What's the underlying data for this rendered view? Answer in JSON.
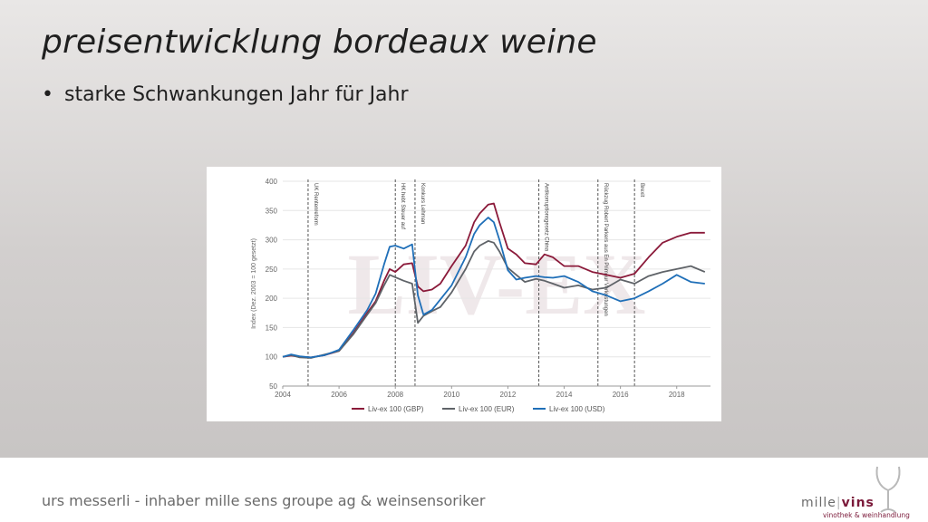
{
  "slide": {
    "title": "preisentwicklung bordeaux weine",
    "bullets": [
      "starke Schwankungen Jahr für Jahr"
    ]
  },
  "footer": {
    "text": "urs messerli - inhaber mille sens groupe ag & weinsensoriker",
    "logo_part1": "mille",
    "logo_part2": "vins",
    "logo_subtitle": "vinothek & weinhandlung"
  },
  "chart_data": {
    "type": "line",
    "watermark": "LIV-EX",
    "ylabel": "Index (Dez. 2003 = 100 gesetzt)",
    "xlim": [
      2004,
      2019.2
    ],
    "ylim": [
      50,
      400
    ],
    "yticks": [
      50,
      100,
      150,
      200,
      250,
      300,
      350,
      400
    ],
    "xticks": [
      2004,
      2006,
      2008,
      2010,
      2012,
      2014,
      2016,
      2018
    ],
    "events": [
      {
        "x": 2004.9,
        "label": "UK Rentenreform"
      },
      {
        "x": 2008.0,
        "label": "HK hebt Steuer auf"
      },
      {
        "x": 2008.7,
        "label": "Konkurs Lehman"
      },
      {
        "x": 2013.1,
        "label": "Antikorruptionsgesetz China"
      },
      {
        "x": 2015.2,
        "label": "Rückzug Robert Parkers aus En Primeur Verkostungen"
      },
      {
        "x": 2016.5,
        "label": "Brexit"
      }
    ],
    "series": [
      {
        "name": "Liv-ex 100 (GBP)",
        "color": "#8b1a3a",
        "points": [
          [
            2004.0,
            100
          ],
          [
            2004.3,
            102
          ],
          [
            2004.6,
            100
          ],
          [
            2005.0,
            99
          ],
          [
            2005.5,
            103
          ],
          [
            2006.0,
            110
          ],
          [
            2006.5,
            140
          ],
          [
            2007.0,
            175
          ],
          [
            2007.3,
            195
          ],
          [
            2007.6,
            230
          ],
          [
            2007.8,
            250
          ],
          [
            2008.0,
            245
          ],
          [
            2008.3,
            258
          ],
          [
            2008.6,
            260
          ],
          [
            2008.8,
            220
          ],
          [
            2009.0,
            212
          ],
          [
            2009.3,
            215
          ],
          [
            2009.6,
            225
          ],
          [
            2010.0,
            255
          ],
          [
            2010.5,
            290
          ],
          [
            2010.8,
            330
          ],
          [
            2011.0,
            345
          ],
          [
            2011.3,
            360
          ],
          [
            2011.5,
            362
          ],
          [
            2011.7,
            330
          ],
          [
            2012.0,
            285
          ],
          [
            2012.3,
            275
          ],
          [
            2012.6,
            260
          ],
          [
            2013.0,
            258
          ],
          [
            2013.3,
            275
          ],
          [
            2013.6,
            270
          ],
          [
            2014.0,
            255
          ],
          [
            2014.5,
            255
          ],
          [
            2015.0,
            245
          ],
          [
            2015.5,
            240
          ],
          [
            2016.0,
            235
          ],
          [
            2016.5,
            242
          ],
          [
            2017.0,
            270
          ],
          [
            2017.5,
            295
          ],
          [
            2018.0,
            305
          ],
          [
            2018.5,
            312
          ],
          [
            2019.0,
            312
          ]
        ]
      },
      {
        "name": "Liv-ex 100 (EUR)",
        "color": "#5f6368",
        "points": [
          [
            2004.0,
            100
          ],
          [
            2004.3,
            103
          ],
          [
            2004.6,
            99
          ],
          [
            2005.0,
            98
          ],
          [
            2005.5,
            104
          ],
          [
            2006.0,
            110
          ],
          [
            2006.5,
            138
          ],
          [
            2007.0,
            172
          ],
          [
            2007.3,
            192
          ],
          [
            2007.6,
            222
          ],
          [
            2007.8,
            240
          ],
          [
            2008.0,
            236
          ],
          [
            2008.3,
            230
          ],
          [
            2008.6,
            225
          ],
          [
            2008.8,
            158
          ],
          [
            2009.0,
            170
          ],
          [
            2009.3,
            178
          ],
          [
            2009.6,
            185
          ],
          [
            2010.0,
            210
          ],
          [
            2010.5,
            250
          ],
          [
            2010.8,
            280
          ],
          [
            2011.0,
            290
          ],
          [
            2011.3,
            298
          ],
          [
            2011.5,
            295
          ],
          [
            2011.7,
            280
          ],
          [
            2012.0,
            252
          ],
          [
            2012.3,
            240
          ],
          [
            2012.6,
            228
          ],
          [
            2013.0,
            233
          ],
          [
            2013.3,
            230
          ],
          [
            2013.6,
            225
          ],
          [
            2014.0,
            218
          ],
          [
            2014.5,
            222
          ],
          [
            2015.0,
            215
          ],
          [
            2015.5,
            218
          ],
          [
            2016.0,
            232
          ],
          [
            2016.5,
            225
          ],
          [
            2017.0,
            238
          ],
          [
            2017.5,
            245
          ],
          [
            2018.0,
            250
          ],
          [
            2018.5,
            255
          ],
          [
            2019.0,
            245
          ]
        ]
      },
      {
        "name": "Liv-ex 100 (USD)",
        "color": "#1f6fb8",
        "points": [
          [
            2004.0,
            100
          ],
          [
            2004.3,
            104
          ],
          [
            2004.6,
            101
          ],
          [
            2005.0,
            99
          ],
          [
            2005.5,
            103
          ],
          [
            2006.0,
            112
          ],
          [
            2006.5,
            145
          ],
          [
            2007.0,
            180
          ],
          [
            2007.3,
            208
          ],
          [
            2007.6,
            258
          ],
          [
            2007.8,
            288
          ],
          [
            2008.0,
            290
          ],
          [
            2008.3,
            285
          ],
          [
            2008.6,
            292
          ],
          [
            2008.8,
            205
          ],
          [
            2009.0,
            172
          ],
          [
            2009.3,
            180
          ],
          [
            2009.6,
            198
          ],
          [
            2010.0,
            222
          ],
          [
            2010.5,
            270
          ],
          [
            2010.8,
            310
          ],
          [
            2011.0,
            325
          ],
          [
            2011.3,
            338
          ],
          [
            2011.5,
            330
          ],
          [
            2011.7,
            300
          ],
          [
            2012.0,
            248
          ],
          [
            2012.3,
            232
          ],
          [
            2012.6,
            235
          ],
          [
            2013.0,
            238
          ],
          [
            2013.3,
            236
          ],
          [
            2013.6,
            235
          ],
          [
            2014.0,
            238
          ],
          [
            2014.5,
            228
          ],
          [
            2015.0,
            212
          ],
          [
            2015.5,
            205
          ],
          [
            2016.0,
            195
          ],
          [
            2016.5,
            200
          ],
          [
            2017.0,
            212
          ],
          [
            2017.5,
            225
          ],
          [
            2018.0,
            240
          ],
          [
            2018.5,
            228
          ],
          [
            2019.0,
            225
          ]
        ]
      }
    ]
  }
}
